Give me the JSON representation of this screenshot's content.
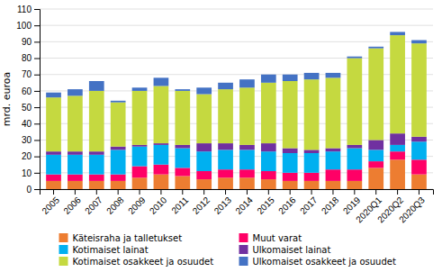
{
  "chart_data": {
    "type": "bar",
    "stacked": true,
    "categories": [
      "2005",
      "2006",
      "2007",
      "2008",
      "2009",
      "2010",
      "2011",
      "2012",
      "2013",
      "2014",
      "2015",
      "2016",
      "2017",
      "2018",
      "2019",
      "2020Q1",
      "2020Q2",
      "2020Q3"
    ],
    "series": [
      {
        "name": "Käteisraha ja talletukset",
        "color": "#ED7D31",
        "values": [
          5,
          5,
          5,
          5,
          7,
          9,
          8,
          6,
          7,
          7,
          6,
          5,
          5,
          5,
          5,
          13,
          18,
          9
        ]
      },
      {
        "name": "Muut varat",
        "color": "#FF0066",
        "values": [
          4,
          4,
          4,
          4,
          7,
          6,
          5,
          5,
          5,
          5,
          5,
          5,
          5,
          7,
          7,
          4,
          5,
          9
        ]
      },
      {
        "name": "Kotimaiset lainat",
        "color": "#00B0F0",
        "values": [
          12,
          12,
          12,
          15,
          12,
          12,
          12,
          12,
          12,
          12,
          12,
          12,
          12,
          11,
          13,
          7,
          4,
          11
        ]
      },
      {
        "name": "Ulkomaiset lainat",
        "color": "#7030A0",
        "values": [
          2,
          2,
          2,
          2,
          1,
          1,
          2,
          5,
          4,
          3,
          5,
          3,
          2,
          2,
          2,
          6,
          7,
          3
        ]
      },
      {
        "name": "Kotimaiset osakkeet ja osuudet",
        "color": "#C5D940",
        "values": [
          33,
          34,
          37,
          27,
          33,
          35,
          33,
          30,
          33,
          35,
          37,
          41,
          43,
          43,
          53,
          56,
          60,
          57
        ]
      },
      {
        "name": "Ulkomaiset osakkeet ja osuudet",
        "color": "#4472C4",
        "values": [
          3,
          4,
          6,
          1,
          2,
          5,
          1,
          4,
          4,
          5,
          5,
          4,
          4,
          3,
          1,
          1,
          2,
          2
        ]
      }
    ],
    "ylabel": "mrd. euroa",
    "ylim": [
      0,
      110
    ],
    "yticks": [
      0,
      10,
      20,
      30,
      40,
      50,
      60,
      70,
      80,
      90,
      100,
      110
    ],
    "grid": true,
    "legend": "bottom"
  }
}
